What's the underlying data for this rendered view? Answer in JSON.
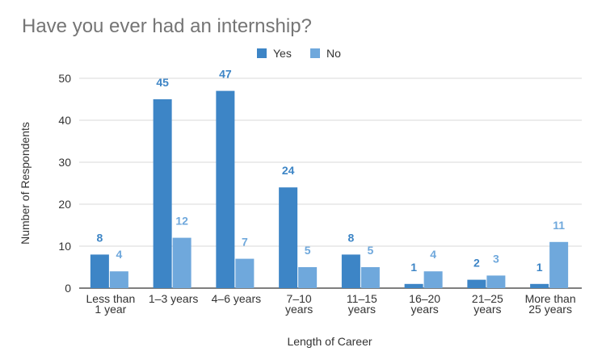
{
  "chart_data": {
    "type": "bar",
    "title": "Have you ever had an internship?",
    "xlabel": "Length of Career",
    "ylabel": "Number of Respondents",
    "categories": [
      [
        "Less than",
        "1 year"
      ],
      [
        "1–3 years"
      ],
      [
        "4–6 years"
      ],
      [
        "7–10",
        "years"
      ],
      [
        "11–15",
        "years"
      ],
      [
        "16–20",
        "years"
      ],
      [
        "21–25",
        "years"
      ],
      [
        "More than",
        "25 years"
      ]
    ],
    "series": [
      {
        "name": "Yes",
        "color": "#3d85c6",
        "values": [
          8,
          45,
          47,
          24,
          8,
          1,
          2,
          1
        ]
      },
      {
        "name": "No",
        "color": "#6fa8dc",
        "values": [
          4,
          12,
          7,
          5,
          5,
          4,
          3,
          11
        ]
      }
    ],
    "ylim": [
      0,
      50
    ],
    "yticks": [
      0,
      10,
      20,
      30,
      40,
      50
    ],
    "grid": true,
    "legend_position": "top-center",
    "colors": {
      "title": "#757575",
      "axis_text": "#333333",
      "grid": "#d9d9d9",
      "baseline": "#333333"
    }
  }
}
